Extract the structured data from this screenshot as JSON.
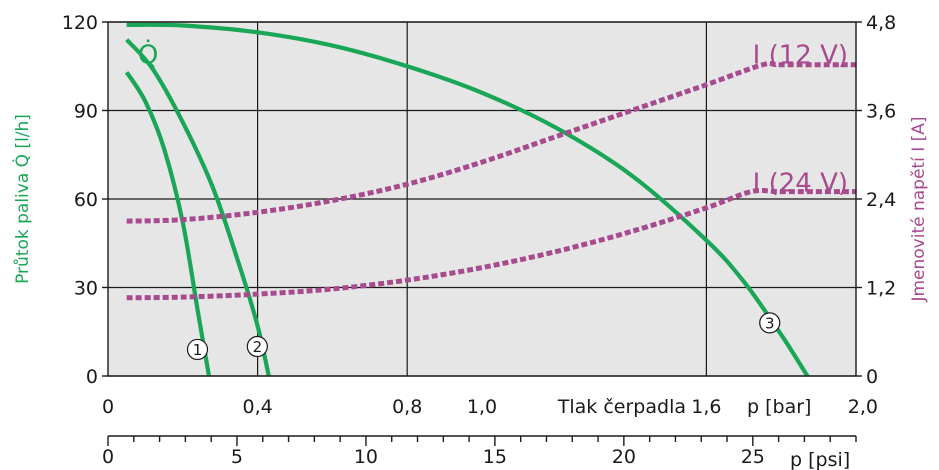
{
  "chart_data": {
    "type": "line",
    "colors": {
      "flow": "#1aa657",
      "current": "#a84a8e",
      "plot_background": "#e6e6e6"
    },
    "y_left": {
      "label": "Průtok paliva  Q̇ [l/h]",
      "ylim": [
        0,
        120
      ],
      "ticks": [
        0,
        30,
        60,
        90,
        120
      ]
    },
    "y_right": {
      "label": "Jmenovité napětí  I [A]",
      "ylim": [
        0,
        4.8
      ],
      "ticks": [
        "0",
        "1,2",
        "2,4",
        "3,6",
        "4,8"
      ]
    },
    "x_bar": {
      "label": "Tlak čerpadla",
      "unit": "p [bar]",
      "xlim": [
        0,
        2.0
      ],
      "ticks": [
        {
          "v": 0,
          "t": "0"
        },
        {
          "v": 0.4,
          "t": "0,4"
        },
        {
          "v": 0.8,
          "t": "0,8"
        },
        {
          "v": 1.0,
          "t": "1,0"
        },
        {
          "v": 1.6,
          "t": "1,6"
        },
        {
          "v": 2.0,
          "t": "2,0"
        }
      ]
    },
    "x_psi": {
      "unit": "p [psi]",
      "xlim": [
        0,
        29
      ],
      "major": [
        0,
        5,
        10,
        15,
        20,
        25
      ],
      "minor_step": 1
    },
    "series": [
      {
        "id": "flow-1",
        "label": "1",
        "axis": "left",
        "x": [
          0.05,
          0.1,
          0.15,
          0.2,
          0.24,
          0.27
        ],
        "y": [
          103,
          93,
          77,
          52,
          22,
          0
        ]
      },
      {
        "id": "flow-2",
        "label": "2",
        "axis": "left",
        "x": [
          0.05,
          0.12,
          0.2,
          0.28,
          0.35,
          0.4,
          0.43
        ],
        "y": [
          114,
          104,
          86,
          64,
          38,
          17,
          0
        ]
      },
      {
        "id": "flow-3",
        "label": "3",
        "axis": "left",
        "x": [
          0.05,
          0.2,
          0.4,
          0.6,
          0.8,
          1.0,
          1.2,
          1.4,
          1.6,
          1.7,
          1.8,
          1.87
        ],
        "y": [
          119,
          118.8,
          116.5,
          112,
          105,
          96,
          84,
          68,
          46,
          32,
          14,
          0
        ]
      },
      {
        "id": "current-12v",
        "label": "I (12 V)",
        "axis": "right",
        "x": [
          0.05,
          0.2,
          0.4,
          0.6,
          0.8,
          1.0,
          1.2,
          1.4,
          1.6,
          1.75,
          1.8,
          2.0
        ],
        "y": [
          2.1,
          2.12,
          2.22,
          2.38,
          2.6,
          2.9,
          3.25,
          3.6,
          3.95,
          4.22,
          4.22,
          4.22
        ]
      },
      {
        "id": "current-24v",
        "label": "I (24 V)",
        "axis": "right",
        "x": [
          0.05,
          0.2,
          0.4,
          0.6,
          0.8,
          1.0,
          1.2,
          1.4,
          1.6,
          1.72,
          1.8,
          2.0
        ],
        "y": [
          1.06,
          1.07,
          1.11,
          1.18,
          1.3,
          1.47,
          1.69,
          1.96,
          2.28,
          2.5,
          2.5,
          2.5
        ]
      }
    ],
    "annotations": {
      "flow_symbol": "Q̇",
      "label_12v": "I (12 V)",
      "label_24v": "I (24 V)",
      "curve_numbers": [
        "1",
        "2",
        "3"
      ]
    },
    "grid": true
  }
}
